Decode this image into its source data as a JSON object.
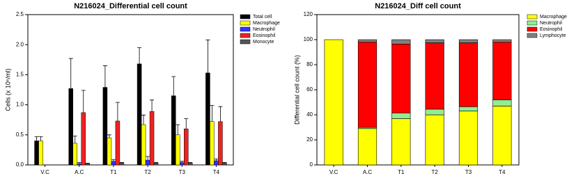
{
  "chart_data": [
    {
      "type": "bar",
      "title": "N216024_Differential cell count",
      "y_label": "Cells (x 10⁶/ml)",
      "categories": [
        "V.C",
        "A.C",
        "T1",
        "T2",
        "T3",
        "T4"
      ],
      "ylim": [
        0,
        2.5
      ],
      "yticks": [
        {
          "value": 0,
          "label": "0.0"
        },
        0.5,
        {
          "value": 1,
          "label": "1.0"
        },
        1.5,
        {
          "value": 2,
          "label": "2.0"
        },
        2.5
      ],
      "series": [
        {
          "name": "Total cell",
          "color": "#000000",
          "values": [
            0.4,
            1.27,
            1.29,
            1.68,
            1.15,
            1.53
          ],
          "errors": [
            0.07,
            0.5,
            0.36,
            0.27,
            0.32,
            0.55
          ]
        },
        {
          "name": "Macrophage",
          "color": "#ffff00",
          "values": [
            0.4,
            0.36,
            0.45,
            0.67,
            0.5,
            0.72
          ],
          "errors": [
            0.07,
            0.12,
            0.05,
            0.16,
            0.17,
            0.27
          ]
        },
        {
          "name": "Neutrophil",
          "color": "#3333ff",
          "values": [
            0,
            0.02,
            0.06,
            0.08,
            0.04,
            0.07
          ],
          "errors": [
            0,
            0.02,
            0.03,
            0.06,
            0.02,
            0.03
          ]
        },
        {
          "name": "Eosinophil",
          "color": "#ee2222",
          "values": [
            0,
            0.87,
            0.73,
            0.89,
            0.6,
            0.72
          ],
          "errors": [
            0,
            0.37,
            0.31,
            0.19,
            0.17,
            0.25
          ]
        },
        {
          "name": "Monocyte",
          "color": "#555555",
          "values": [
            0,
            0.02,
            0.03,
            0.03,
            0.03,
            0.03
          ],
          "errors": [
            0,
            0.01,
            0.01,
            0.01,
            0.01,
            0.01
          ]
        }
      ]
    },
    {
      "type": "stacked_bar",
      "title": "N216024_Diff cell count",
      "y_label": "Differential cell count (%)",
      "categories": [
        "V.C",
        "A.C",
        "T1",
        "T2",
        "T3",
        "T4"
      ],
      "ylim": [
        0,
        120
      ],
      "yticks": [
        0,
        20,
        40,
        60,
        80,
        100,
        120
      ],
      "series": [
        {
          "name": "Macrophage",
          "color": "#ffff00",
          "values": [
            100,
            29,
            37,
            40,
            43,
            47
          ]
        },
        {
          "name": "Neutrophil",
          "color": "#90ee90",
          "values": [
            0,
            1,
            4.5,
            4.5,
            3.5,
            5
          ]
        },
        {
          "name": "Eosinophil",
          "color": "#ff0000",
          "values": [
            0,
            68,
            55,
            53,
            51,
            46
          ]
        },
        {
          "name": "Lymphocyte",
          "color": "#808080",
          "values": [
            0,
            2,
            3.5,
            2.5,
            2.5,
            2
          ]
        }
      ]
    }
  ]
}
